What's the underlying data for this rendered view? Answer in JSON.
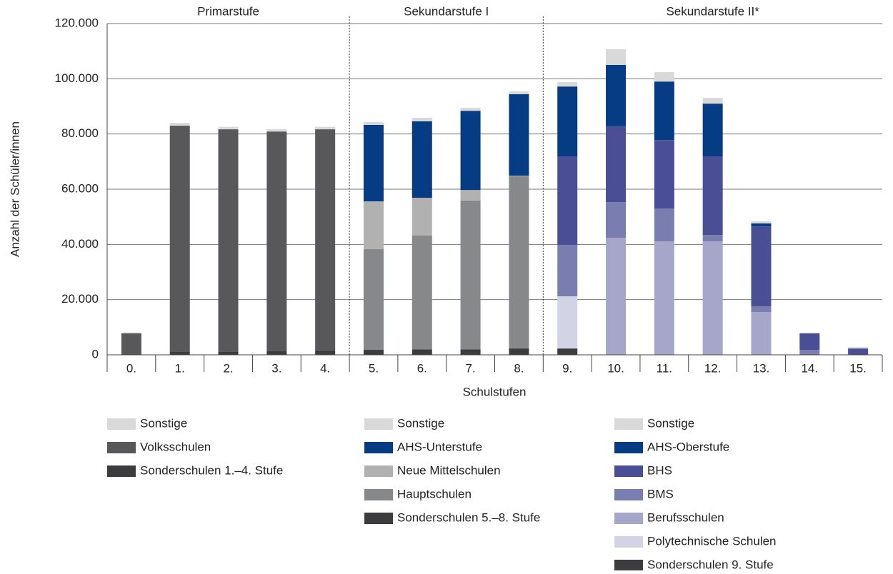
{
  "chart_data": {
    "type": "stacked-bar",
    "y_label": "Anzahl der Schüler/innen",
    "x_label": "Schulstufen",
    "ylim": [
      0,
      120000
    ],
    "yticks": [
      0,
      {
        "value": 20000,
        "label": "20.000"
      },
      {
        "value": 40000,
        "label": "40.000"
      },
      {
        "value": 60000,
        "label": "60.000"
      },
      {
        "value": 80000,
        "label": "80.000"
      },
      {
        "value": 100000,
        "label": "100.000"
      },
      {
        "value": 120000,
        "label": "120.000"
      }
    ],
    "grid": true,
    "sections": [
      {
        "title": "Primarstufe",
        "categories": [
          "0.",
          "1.",
          "2.",
          "3.",
          "4."
        ],
        "series": [
          {
            "name": "Sonstige",
            "color": "#d9d9da",
            "values": [
              300,
              1000,
              900,
              900,
              900
            ]
          },
          {
            "name": "Volksschulen",
            "color": "#58585a",
            "values": [
              7800,
              81800,
              80500,
              79600,
              80100
            ]
          },
          {
            "name": "Sonderschulen 1.–4. Stufe",
            "color": "#3c3c3e",
            "values": [
              0,
              1200,
              1200,
              1300,
              1600
            ]
          }
        ]
      },
      {
        "title": "Sekundarstufe I",
        "categories": [
          "5.",
          "6.",
          "7.",
          "8."
        ],
        "series": [
          {
            "name": "Sonstige",
            "color": "#d9d9da",
            "values": [
              1000,
              1300,
              1100,
              1000
            ]
          },
          {
            "name": "AHS-Unterstufe",
            "color": "#063c84",
            "values": [
              27700,
              27700,
              28700,
              29500
            ]
          },
          {
            "name": "Neue Mittelschulen",
            "color": "#b1b1b2",
            "values": [
              17300,
              13700,
              3800,
              200
            ]
          },
          {
            "name": "Hauptschulen",
            "color": "#87888a",
            "values": [
              36500,
              41200,
              53900,
              62400
            ]
          },
          {
            "name": "Sonderschulen 5.–8. Stufe",
            "color": "#3c3c3e",
            "values": [
              1800,
              2000,
              2000,
              2300
            ]
          }
        ]
      },
      {
        "title": "Sekundarstufe II*",
        "categories": [
          "9.",
          "10.",
          "11.",
          "12.",
          "13.",
          "14.",
          "15."
        ],
        "series": [
          {
            "name": "Sonstige",
            "color": "#d9d9da",
            "values": [
              1600,
              5700,
              3400,
              2100,
              800,
              200,
              500
            ]
          },
          {
            "name": "AHS-Oberstufe",
            "color": "#063c84",
            "values": [
              25300,
              22200,
              21200,
              19100,
              1100,
              0,
              0
            ]
          },
          {
            "name": "BHS",
            "color": "#4a4f95",
            "values": [
              32100,
              27500,
              24800,
              28500,
              28900,
              6000,
              2300
            ]
          },
          {
            "name": "BMS",
            "color": "#7a7db0",
            "values": [
              18600,
              12900,
              11900,
              2300,
              2100,
              1800,
              0
            ]
          },
          {
            "name": "Berufsschulen",
            "color": "#a6a6cb",
            "values": [
              0,
              42400,
              41100,
              41100,
              15500,
              0,
              0
            ]
          },
          {
            "name": "Polytechnische Schulen",
            "color": "#d3d3e6",
            "values": [
              18900,
              0,
              0,
              0,
              0,
              0,
              0
            ]
          },
          {
            "name": "Sonderschulen 9. Stufe",
            "color": "#3c3c3e",
            "values": [
              2300,
              0,
              0,
              0,
              0,
              0,
              0
            ]
          }
        ]
      }
    ]
  }
}
